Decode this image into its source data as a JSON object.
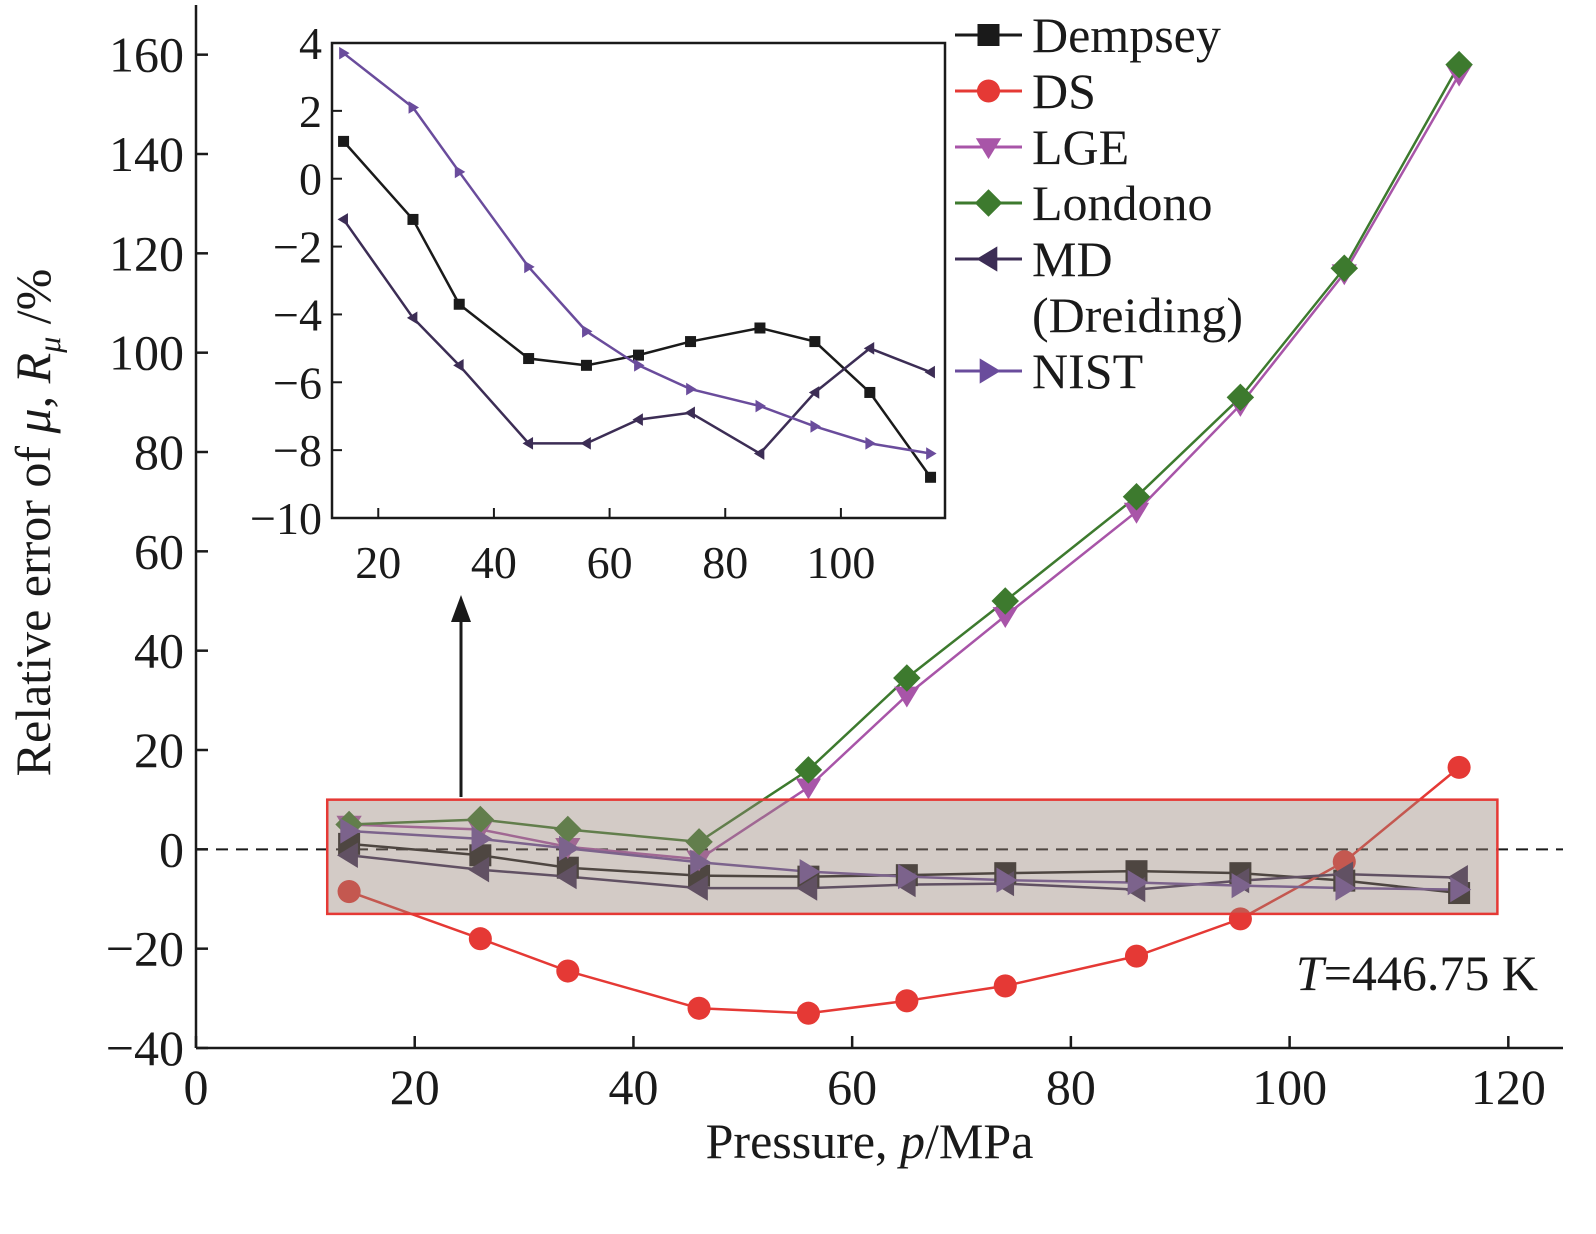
{
  "chart_data": {
    "type": "line",
    "xlabel": {
      "main": "Pressure, ",
      "italic": "p",
      "unit": "/MPa"
    },
    "ylabel": {
      "main": "Relative error of ",
      "mu": "μ",
      "sep": ", ",
      "R": "R",
      "sub": "μ",
      "unit": " /%"
    },
    "xlim": [
      0,
      125
    ],
    "ylim": [
      -40,
      170
    ],
    "xticks": [
      0,
      20,
      40,
      60,
      80,
      100,
      120
    ],
    "yticks": [
      -40,
      -20,
      0,
      20,
      40,
      60,
      80,
      100,
      120,
      140,
      160
    ],
    "reference_line": {
      "y": 0,
      "style": "dashed"
    },
    "annotation": {
      "italic": "T",
      "rest": "=446.75 K"
    },
    "highlight_box": {
      "xrange": [
        12,
        119
      ],
      "yrange": [
        -13,
        10
      ]
    },
    "x": [
      14,
      26,
      34,
      46,
      56,
      65,
      74,
      86,
      95.5,
      105,
      115.5
    ],
    "series": [
      {
        "name": "Dempsey",
        "color": "#1a1a1a",
        "marker": "square",
        "values": [
          1.1,
          -1.2,
          -3.7,
          -5.3,
          -5.5,
          -5.2,
          -4.8,
          -4.4,
          -4.8,
          -6.3,
          -8.8
        ]
      },
      {
        "name": "DS",
        "color": "#e53935",
        "marker": "circle",
        "values": [
          -8.5,
          -18,
          -24.5,
          -32,
          -33,
          -30.5,
          -27.5,
          -21.5,
          -14,
          -2.5,
          16.5
        ]
      },
      {
        "name": "LGE",
        "color": "#a855a8",
        "marker": "triangle-down",
        "values": [
          5,
          4,
          0.5,
          -2,
          12.5,
          31,
          47,
          68,
          89.5,
          116,
          156
        ]
      },
      {
        "name": "Londono",
        "color": "#3d7a2e",
        "marker": "diamond",
        "values": [
          5,
          6,
          4,
          1.5,
          16,
          34.5,
          50,
          71,
          91,
          117,
          158
        ]
      },
      {
        "name": "MD (Dreiding)",
        "name_lines": [
          "MD",
          "(Dreiding)"
        ],
        "color": "#3c2d55",
        "marker": "triangle-left",
        "values": [
          -1.2,
          -4.1,
          -5.5,
          -7.8,
          -7.8,
          -7.1,
          -6.9,
          -8.1,
          -6.3,
          -5,
          -5.7
        ]
      },
      {
        "name": "NIST",
        "color": "#6a4c9c",
        "marker": "triangle-right",
        "values": [
          3.7,
          2.1,
          0.2,
          -2.6,
          -4.5,
          -5.5,
          -6.2,
          -6.7,
          -7.3,
          -7.8,
          -8.1
        ]
      }
    ],
    "inset": {
      "xlim": [
        12,
        118
      ],
      "ylim": [
        -10,
        4
      ],
      "xticks": [
        20,
        40,
        60,
        80,
        100
      ],
      "yticks": [
        -10,
        -8,
        -6,
        -4,
        -2,
        0,
        2,
        4
      ],
      "series_names": [
        "Dempsey",
        "MD (Dreiding)",
        "NIST"
      ]
    }
  }
}
